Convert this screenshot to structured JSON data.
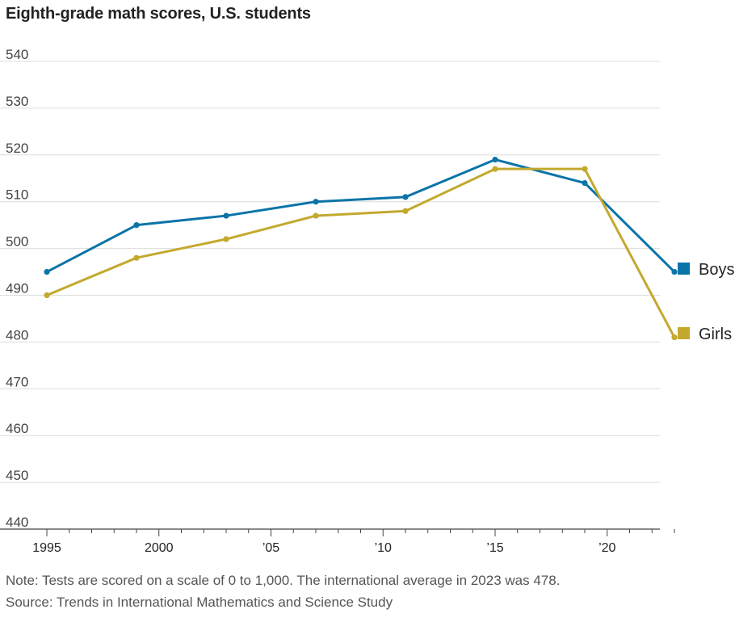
{
  "title": "Eighth-grade math scores, U.S. students",
  "note": "Note: Tests are scored on a scale of 0 to 1,000. The international average in 2023 was 478.",
  "source": "Source: Trends in International Mathematics and Science Study",
  "chart_data": {
    "type": "line",
    "title": "Eighth-grade math scores, U.S. students",
    "xlabel": "",
    "ylabel": "",
    "x": [
      1995,
      1999,
      2003,
      2007,
      2011,
      2015,
      2019,
      2023
    ],
    "xlim": [
      1995,
      2023
    ],
    "ylim": [
      440,
      540
    ],
    "yticks": [
      440,
      450,
      460,
      470,
      480,
      490,
      500,
      510,
      520,
      530,
      540
    ],
    "xticks": [
      {
        "value": 1995,
        "label": "1995"
      },
      {
        "value": 2000,
        "label": "2000"
      },
      {
        "value": 2005,
        "label": "’05"
      },
      {
        "value": 2010,
        "label": "’10"
      },
      {
        "value": 2015,
        "label": "’15"
      },
      {
        "value": 2020,
        "label": "’20"
      }
    ],
    "grid": true,
    "legend_placement": "right",
    "series": [
      {
        "name": "Boys",
        "color": "#0a74a8",
        "values": [
          495,
          505,
          507,
          510,
          511,
          519,
          514,
          495
        ]
      },
      {
        "name": "Girls",
        "color": "#c3a92e",
        "values": [
          490,
          498,
          502,
          507,
          508,
          517,
          517,
          481
        ]
      }
    ]
  }
}
